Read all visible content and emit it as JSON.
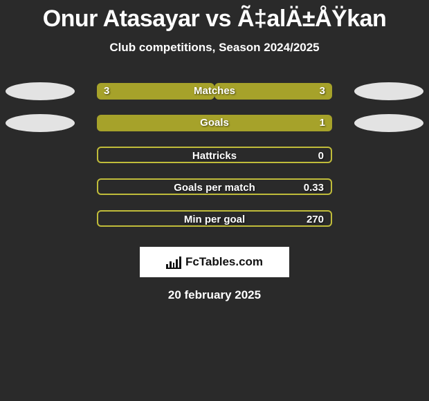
{
  "title": "Onur Atasayar vs Ã‡alÄ±ÅŸkan",
  "subtitle": "Club competitions, Season 2024/2025",
  "date": "20 february 2025",
  "logo_text": "FcTables.com",
  "colors": {
    "background": "#2a2a2a",
    "olive": "#a6a22a",
    "olive_border": "#c0bc3a",
    "ellipse_light": "#e3e3e3",
    "text": "#ffffff"
  },
  "stats": [
    {
      "label": "Matches",
      "left_value": "3",
      "right_value": "3",
      "left_fill_pct": 50,
      "right_fill_pct": 50,
      "track_has_border": false,
      "show_left_value": true,
      "show_right_value": true,
      "left_ellipse_color": "#e3e3e3",
      "right_ellipse_color": "#e3e3e3",
      "show_ellipses": true
    },
    {
      "label": "Goals",
      "left_value": "",
      "right_value": "1",
      "left_fill_pct": 0,
      "right_fill_pct": 100,
      "track_has_border": false,
      "show_left_value": false,
      "show_right_value": true,
      "left_ellipse_color": "#e3e3e3",
      "right_ellipse_color": "#e3e3e3",
      "show_ellipses": true
    },
    {
      "label": "Hattricks",
      "left_value": "",
      "right_value": "0",
      "left_fill_pct": 0,
      "right_fill_pct": 0,
      "track_has_border": true,
      "show_left_value": false,
      "show_right_value": true,
      "show_ellipses": false
    },
    {
      "label": "Goals per match",
      "left_value": "",
      "right_value": "0.33",
      "left_fill_pct": 0,
      "right_fill_pct": 0,
      "track_has_border": true,
      "show_left_value": false,
      "show_right_value": true,
      "show_ellipses": false
    },
    {
      "label": "Min per goal",
      "left_value": "",
      "right_value": "270",
      "left_fill_pct": 0,
      "right_fill_pct": 0,
      "track_has_border": true,
      "show_left_value": false,
      "show_right_value": true,
      "show_ellipses": false
    }
  ]
}
